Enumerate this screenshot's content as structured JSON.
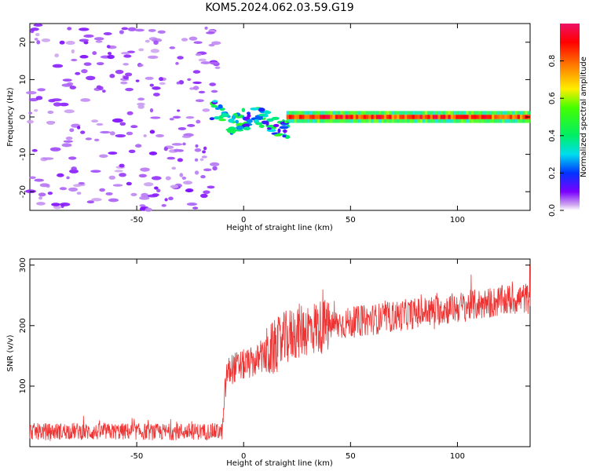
{
  "title": "KOM5.2024.062.03.59.G19",
  "chart_data": [
    {
      "type": "heatmap",
      "xlabel": "Height of straight line (km)",
      "ylabel": "Frequency (Hz)",
      "xlim": [
        -100,
        134
      ],
      "ylim": [
        -25,
        25
      ],
      "xticks": [
        -50,
        0,
        50,
        100
      ],
      "yticks": [
        -20,
        -10,
        0,
        10,
        20
      ],
      "colorbar": {
        "label": "Normalized spectral amplitude",
        "range": [
          0,
          1
        ],
        "ticks": [
          "0.0",
          "0.2",
          "0.4",
          "0.6",
          "0.8"
        ]
      },
      "description_bands": [
        {
          "x": [
            -100,
            -12
          ],
          "freq": [
            -25,
            25
          ],
          "amplitude": [
            0.0,
            0.1
          ],
          "note": "scattered weak noise"
        },
        {
          "x": [
            -12,
            20
          ],
          "freq_center": [
            0,
            -2
          ],
          "amplitude": [
            0.1,
            0.5
          ],
          "note": "onset of signal, drifting line"
        },
        {
          "x": [
            20,
            134
          ],
          "freq_center": 0,
          "amplitude": [
            0.7,
            1.0
          ],
          "note": "steady strong line at 0 Hz"
        }
      ]
    },
    {
      "type": "line",
      "xlabel": "Height of straight line (km)",
      "ylabel": "SNR (v/v)",
      "xlim": [
        -100,
        134
      ],
      "ylim": [
        0,
        310
      ],
      "xticks": [
        -50,
        0,
        50,
        100
      ],
      "yticks": [
        100,
        200,
        300
      ],
      "color": "#ee3333",
      "series": [
        {
          "x": [
            -100,
            -90,
            -80,
            -70,
            -60,
            -50,
            -40,
            -30,
            -20,
            -10,
            -8,
            -5,
            0,
            5,
            10,
            15,
            20,
            25,
            30,
            40,
            50,
            60,
            70,
            80,
            90,
            100,
            110,
            120,
            130,
            134
          ],
          "values": [
            25,
            25,
            26,
            24,
            25,
            25,
            24,
            25,
            25,
            25,
            120,
            130,
            135,
            140,
            150,
            165,
            180,
            190,
            195,
            200,
            205,
            210,
            215,
            220,
            225,
            230,
            235,
            240,
            245,
            245
          ]
        }
      ]
    }
  ]
}
